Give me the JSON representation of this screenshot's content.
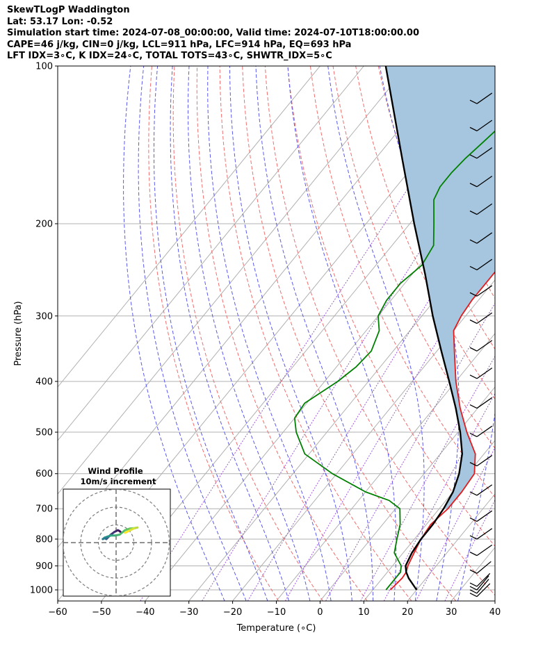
{
  "header": {
    "lines": [
      "SkewTLogP Waddington",
      "Lat: 53.17   Lon: -0.52",
      "Simulation start time: 2024-07-08_00:00:00, Valid time: 2024-07-10T18:00:00.00",
      "CAPE=46 j/kg, CIN=0 j/kg, LCL=911 hPa, LFC=914 hPa, EQ=693 hPa",
      "LFT IDX=3∘C, K IDX=24∘C, TOTAL TOTS=43∘C, SHWTR_IDX=5∘C"
    ]
  },
  "chart_data": {
    "type": "line",
    "xlabel": "Temperature (∘C)",
    "ylabel": "Pressure (hPa)",
    "xlim": [
      -60,
      40
    ],
    "ylim": [
      1050,
      100
    ],
    "y_scale": "log",
    "x_ticks": [
      -60,
      -50,
      -40,
      -30,
      -20,
      -10,
      0,
      10,
      20,
      30,
      40
    ],
    "x_tick_labels": [
      "−60",
      "−50",
      "−40",
      "−30",
      "−20",
      "−10",
      "0",
      "10",
      "20",
      "30",
      "40"
    ],
    "y_ticks": [
      1000,
      900,
      800,
      700,
      600,
      500,
      400,
      300,
      200,
      100
    ],
    "y_tick_labels": [
      "1000",
      "900",
      "800",
      "700",
      "600",
      "500",
      "400",
      "300",
      "200",
      "100"
    ],
    "grid": true,
    "series": [
      {
        "role": "temperature",
        "color": "#e31a1c",
        "points": [
          [
            1000,
            14.0
          ],
          [
            950,
            14.5
          ],
          [
            925,
            14.3
          ],
          [
            900,
            13.5
          ],
          [
            850,
            12.5
          ],
          [
            800,
            11.5
          ],
          [
            750,
            11.0
          ],
          [
            700,
            12.0
          ],
          [
            650,
            12.0
          ],
          [
            600,
            11.5
          ],
          [
            550,
            8.0
          ],
          [
            500,
            2.0
          ],
          [
            450,
            -4.0
          ],
          [
            400,
            -10.0
          ],
          [
            350,
            -16.0
          ],
          [
            320,
            -20.0
          ],
          [
            300,
            -21.0
          ],
          [
            280,
            -21.5
          ],
          [
            250,
            -21.5
          ],
          [
            230,
            -21.5
          ],
          [
            210,
            -19.0
          ],
          [
            200,
            -16.5
          ],
          [
            180,
            -12.5
          ],
          [
            160,
            -9.5
          ],
          [
            150,
            -8.5
          ],
          [
            140,
            -8.5
          ],
          [
            130,
            -9.0
          ],
          [
            120,
            -10.0
          ],
          [
            110,
            -11.5
          ],
          [
            100,
            -13.0
          ]
        ]
      },
      {
        "role": "dewpoint",
        "color": "#008000",
        "points": [
          [
            1000,
            13.0
          ],
          [
            950,
            13.0
          ],
          [
            925,
            13.0
          ],
          [
            900,
            12.0
          ],
          [
            850,
            8.0
          ],
          [
            800,
            6.0
          ],
          [
            750,
            4.0
          ],
          [
            700,
            1.0
          ],
          [
            675,
            -3.0
          ],
          [
            650,
            -10.0
          ],
          [
            600,
            -21.0
          ],
          [
            550,
            -31.0
          ],
          [
            500,
            -37.0
          ],
          [
            470,
            -40.0
          ],
          [
            440,
            -40.5
          ],
          [
            400,
            -37.0
          ],
          [
            375,
            -35.5
          ],
          [
            350,
            -35.0
          ],
          [
            320,
            -37.0
          ],
          [
            300,
            -40.0
          ],
          [
            280,
            -41.0
          ],
          [
            260,
            -41.0
          ],
          [
            240,
            -39.5
          ],
          [
            220,
            -40.5
          ],
          [
            200,
            -44.5
          ],
          [
            180,
            -49.0
          ],
          [
            170,
            -50.0
          ],
          [
            160,
            -50.0
          ],
          [
            150,
            -49.5
          ],
          [
            140,
            -48.5
          ],
          [
            130,
            -47.5
          ],
          [
            120,
            -47.0
          ],
          [
            110,
            -46.0
          ],
          [
            100,
            -45.5
          ]
        ]
      },
      {
        "role": "parcel",
        "color": "#000000",
        "points": [
          [
            1000,
            20.0
          ],
          [
            950,
            16.0
          ],
          [
            925,
            14.3
          ],
          [
            900,
            13.0
          ],
          [
            850,
            12.0
          ],
          [
            800,
            11.5
          ],
          [
            750,
            11.5
          ],
          [
            700,
            11.0
          ],
          [
            650,
            10.0
          ],
          [
            600,
            8.0
          ],
          [
            550,
            5.0
          ],
          [
            500,
            0.5
          ],
          [
            450,
            -5.0
          ],
          [
            400,
            -11.5
          ],
          [
            350,
            -19.0
          ],
          [
            300,
            -27.5
          ],
          [
            250,
            -37.0
          ],
          [
            200,
            -49.0
          ],
          [
            150,
            -64.0
          ],
          [
            100,
            -85.0
          ]
        ]
      }
    ],
    "background_lines": {
      "isotherms": [
        -100,
        -90,
        -80,
        -70,
        -60,
        -50,
        -40,
        -30,
        -20,
        -10,
        0,
        10,
        20,
        30,
        40
      ],
      "dry_adiabats_theta_K": [
        260,
        270,
        280,
        290,
        300,
        310,
        320,
        330,
        340,
        350,
        360,
        370,
        380,
        390,
        400,
        410,
        420,
        430,
        440,
        450
      ],
      "moist_adiabats_C": [
        -25,
        -20,
        -15,
        -10,
        -5,
        0,
        5,
        10,
        15,
        20,
        25,
        30
      ],
      "mixing_ratio_gkg": [
        0.1,
        0.4,
        1,
        2,
        4,
        7,
        10,
        16,
        24
      ]
    },
    "wind_barbs": [
      {
        "p": 1030,
        "speed_kt": 10,
        "dir": 225
      },
      {
        "p": 1015,
        "speed_kt": 10,
        "dir": 220
      },
      {
        "p": 1000,
        "speed_kt": 10,
        "dir": 220
      },
      {
        "p": 985,
        "speed_kt": 10,
        "dir": 225
      },
      {
        "p": 930,
        "speed_kt": 10,
        "dir": 230
      },
      {
        "p": 860,
        "speed_kt": 10,
        "dir": 235
      },
      {
        "p": 800,
        "speed_kt": 10,
        "dir": 235
      },
      {
        "p": 740,
        "speed_kt": 10,
        "dir": 235
      },
      {
        "p": 660,
        "speed_kt": 10,
        "dir": 235
      },
      {
        "p": 580,
        "speed_kt": 10,
        "dir": 235
      },
      {
        "p": 510,
        "speed_kt": 10,
        "dir": 235
      },
      {
        "p": 450,
        "speed_kt": 10,
        "dir": 235
      },
      {
        "p": 395,
        "speed_kt": 10,
        "dir": 235
      },
      {
        "p": 350,
        "speed_kt": 10,
        "dir": 235
      },
      {
        "p": 310,
        "speed_kt": 10,
        "dir": 235
      },
      {
        "p": 275,
        "speed_kt": 10,
        "dir": 235
      },
      {
        "p": 245,
        "speed_kt": 10,
        "dir": 235
      },
      {
        "p": 218,
        "speed_kt": 10,
        "dir": 235
      },
      {
        "p": 192,
        "speed_kt": 10,
        "dir": 235
      },
      {
        "p": 170,
        "speed_kt": 10,
        "dir": 235
      },
      {
        "p": 150,
        "speed_kt": 10,
        "dir": 235
      },
      {
        "p": 133,
        "speed_kt": 10,
        "dir": 235
      },
      {
        "p": 118,
        "speed_kt": 10,
        "dir": 235
      }
    ],
    "inset": {
      "title": "Wind Profile",
      "subtitle": "10m/s increment",
      "type": "hodograph",
      "rings_ms": [
        10,
        20,
        30
      ],
      "trace_uv": [
        [
          3.0,
          5.5
        ],
        [
          2.0,
          6.5
        ],
        [
          1.0,
          7.0
        ],
        [
          -1.0,
          6.0
        ],
        [
          -3.0,
          4.5
        ],
        [
          -4.5,
          3.0
        ],
        [
          -5.5,
          2.0
        ],
        [
          -6.5,
          2.5
        ],
        [
          -7.5,
          2.0
        ],
        [
          -6.5,
          2.8
        ],
        [
          -4.5,
          3.5
        ],
        [
          -3.0,
          4.0
        ],
        [
          -0.5,
          4.0
        ],
        [
          2.0,
          4.5
        ],
        [
          5.0,
          7.0
        ],
        [
          8.0,
          8.0
        ],
        [
          10.5,
          8.2
        ],
        [
          12.0,
          8.5
        ],
        [
          10.0,
          8.0
        ],
        [
          7.0,
          6.5
        ],
        [
          5.0,
          5.5
        ]
      ]
    }
  }
}
